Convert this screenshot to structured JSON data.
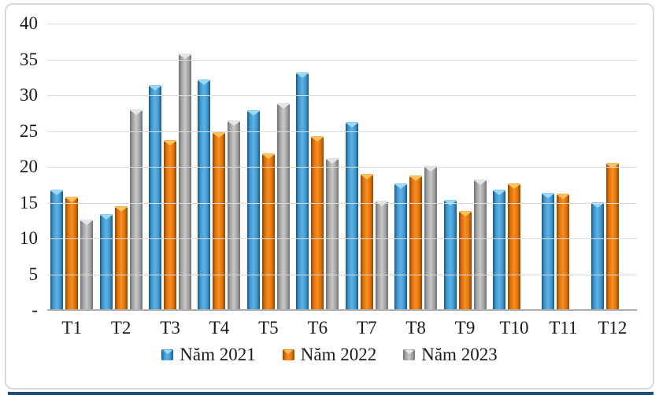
{
  "chart_data": {
    "type": "bar",
    "title": "",
    "categories": [
      "T1",
      "T2",
      "T3",
      "T4",
      "T5",
      "T6",
      "T7",
      "T8",
      "T9",
      "T10",
      "T11",
      "T12"
    ],
    "series": [
      {
        "name": "Năm 2021",
        "color": "#2E86C1",
        "fill": {
          "edge": "#17567f",
          "mid": "#3e97cf",
          "light": "#5fb2e2",
          "notch": "#9ad8f4"
        },
        "values": [
          16.8,
          13.4,
          31.4,
          32.2,
          27.9,
          33.2,
          26.3,
          17.7,
          15.4,
          16.8,
          16.4,
          15.1
        ]
      },
      {
        "name": "Năm 2022",
        "color": "#E8730C",
        "fill": {
          "edge": "#8f4300",
          "mid": "#e0720c",
          "light": "#f79023",
          "notch": "#ffc25e"
        },
        "values": [
          15.8,
          14.5,
          23.7,
          24.8,
          21.9,
          24.3,
          19.0,
          18.8,
          13.9,
          17.7,
          16.3,
          20.5
        ]
      },
      {
        "name": "Năm 2023",
        "color": "#A6A6A6",
        "fill": {
          "edge": "#6f6f6f",
          "mid": "#a2a2a2",
          "light": "#c9c9c9",
          "notch": "#e6e6e6"
        },
        "values": [
          12.6,
          28.0,
          35.8,
          26.5,
          28.9,
          21.2,
          15.3,
          20.1,
          18.2,
          null,
          null,
          null
        ]
      }
    ],
    "y_axis": {
      "min": 0,
      "max": 40,
      "step": 5,
      "tick_labels": [
        "40",
        "35",
        "30",
        "25",
        "20",
        "15",
        "10",
        "5",
        "-"
      ]
    },
    "grid": true,
    "legend_position": "bottom",
    "grid_color": "#dcdcdc",
    "baseline_color": "#aeaeae",
    "frame_border_color": "#d9d9d9",
    "bottom_strip_color": "#1f4e79"
  }
}
